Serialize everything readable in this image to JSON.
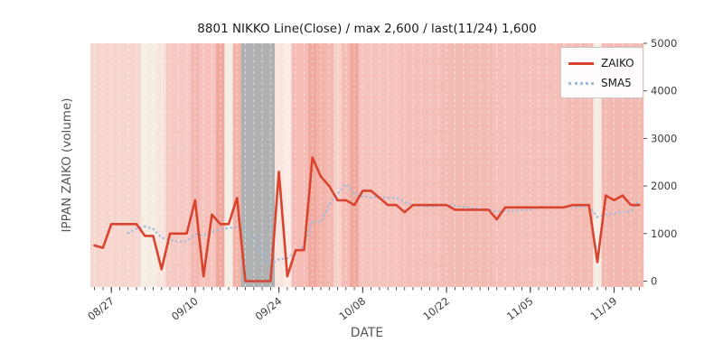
{
  "figure": {
    "title": "8801 NIKKO Line(Close) / max 2,600 / last(11/24) 1,600",
    "xlabel": "DATE",
    "ylabel": "IPPAN ZAIKO (volume)"
  },
  "legend": {
    "position": "upper right",
    "items": [
      {
        "label": "ZAIKO",
        "style": "solid",
        "color": "#d8442e"
      },
      {
        "label": "SMA5",
        "style": "dotted",
        "color": "#9fbcdc"
      }
    ]
  },
  "colors": {
    "zaiko_line": "#d8442e",
    "sma5_line": "#9fbcdc",
    "plot_background": "#ebebf1",
    "grid_dash": "#ffffff",
    "holiday_band": "#aeb0b2",
    "tick_label": "#3d3d3d",
    "axis_label": "#555555"
  },
  "chart_data": {
    "type": "line",
    "title": "8801 NIKKO Line(Close) / max 2,600 / last(11/24) 1,600",
    "xlabel": "DATE",
    "ylabel": "IPPAN ZAIKO (volume)",
    "ylim": [
      0,
      5000
    ],
    "yticks": [
      0,
      1000,
      2000,
      3000,
      4000,
      5000
    ],
    "xtick_labels": [
      "08/27",
      "09/10",
      "09/24",
      "10/08",
      "10/22",
      "11/05",
      "11/19"
    ],
    "xtick_indices": [
      2,
      12,
      22,
      32,
      42,
      52,
      62
    ],
    "grid": "vertical white dashed per business day",
    "legend_position": "upper right",
    "max_value": 2600,
    "last_label": "last(11/24) 1,600",
    "last_value": 1600,
    "x_dates": [
      "08/25",
      "08/26",
      "08/27",
      "08/30",
      "08/31",
      "09/01",
      "09/02",
      "09/03",
      "09/06",
      "09/07",
      "09/08",
      "09/09",
      "09/10",
      "09/13",
      "09/14",
      "09/15",
      "09/16",
      "09/17",
      "09/20",
      "09/21",
      "09/22",
      "09/23",
      "09/24",
      "09/27",
      "09/28",
      "09/29",
      "09/30",
      "10/01",
      "10/04",
      "10/05",
      "10/06",
      "10/07",
      "10/08",
      "10/11",
      "10/12",
      "10/13",
      "10/14",
      "10/15",
      "10/18",
      "10/19",
      "10/20",
      "10/21",
      "10/22",
      "10/25",
      "10/26",
      "10/27",
      "10/28",
      "10/29",
      "11/01",
      "11/02",
      "11/03",
      "11/04",
      "11/05",
      "11/08",
      "11/09",
      "11/10",
      "11/11",
      "11/12",
      "11/15",
      "11/16",
      "11/17",
      "11/18",
      "11/19",
      "11/22",
      "11/23",
      "11/24"
    ],
    "series": [
      {
        "name": "ZAIKO",
        "values": [
          750,
          700,
          1200,
          1200,
          1200,
          1200,
          950,
          950,
          250,
          1000,
          1000,
          1000,
          1700,
          100,
          1400,
          1200,
          1200,
          1750,
          0,
          0,
          0,
          0,
          2300,
          100,
          650,
          650,
          2600,
          2200,
          2000,
          1700,
          1700,
          1600,
          1900,
          1900,
          1750,
          1600,
          1600,
          1450,
          1600,
          1600,
          1600,
          1600,
          1600,
          1500,
          1500,
          1500,
          1500,
          1500,
          1300,
          1550,
          1550,
          1550,
          1550,
          1550,
          1550,
          1550,
          1550,
          1600,
          1600,
          1600,
          400,
          1800,
          1700,
          1800,
          1600,
          1600
        ]
      },
      {
        "name": "SMA5",
        "derived": "5-day simple moving average of ZAIKO (starts at 5th point)"
      }
    ],
    "background_bands": {
      "note": "one vertical color band per business day (price heatmap); gray = no-trade days",
      "colors": [
        "#f8d6d0",
        "#f8d6d0",
        "#f8d6d0",
        "#f8d6d0",
        "#f8d6d0",
        "#f8d6d0",
        "#f5ece3",
        "#f5ece3",
        "#f9e4dd",
        "#f6cac3",
        "#f6cac3",
        "#f6cac3",
        "#f3b8b0",
        "#f5c3bb",
        "#f5c3bb",
        "#efa89d",
        "#f5ece3",
        "#f2b3a9",
        "#aeb0b2",
        "#aeb0b2",
        "#aeb0b2",
        "#aeb0b2",
        "#f9e4dd",
        "#fbeae4",
        "#f4bcb4",
        "#f4bcb4",
        "#f0a99f",
        "#f2b3a9",
        "#f3b8b0",
        "#f7d0ca",
        "#f4bcb4",
        "#efa89d",
        "#f5c3bb",
        "#f5c3bb",
        "#f5c3bb",
        "#f5c3bb",
        "#f5c3bb",
        "#f4bfb7",
        "#f4bfb7",
        "#f4bfb7",
        "#f4bfb7",
        "#f4bfb7",
        "#f3bbb2",
        "#f3bbb2",
        "#f3bbb2",
        "#f3bbb2",
        "#f3bbb2",
        "#f3bbb2",
        "#f4bfb7",
        "#f4bfb7",
        "#f4bfb7",
        "#f4bfb7",
        "#f4bfb7",
        "#f4bfb7",
        "#f4bfb7",
        "#f4bfb7",
        "#f4bfb7",
        "#f3bbb2",
        "#f3bbb2",
        "#f3bbb2",
        "#f5ece3",
        "#f3b8b0",
        "#f3b8b0",
        "#f3b8b0",
        "#f3b8b0",
        "#f3b8b0"
      ]
    }
  }
}
